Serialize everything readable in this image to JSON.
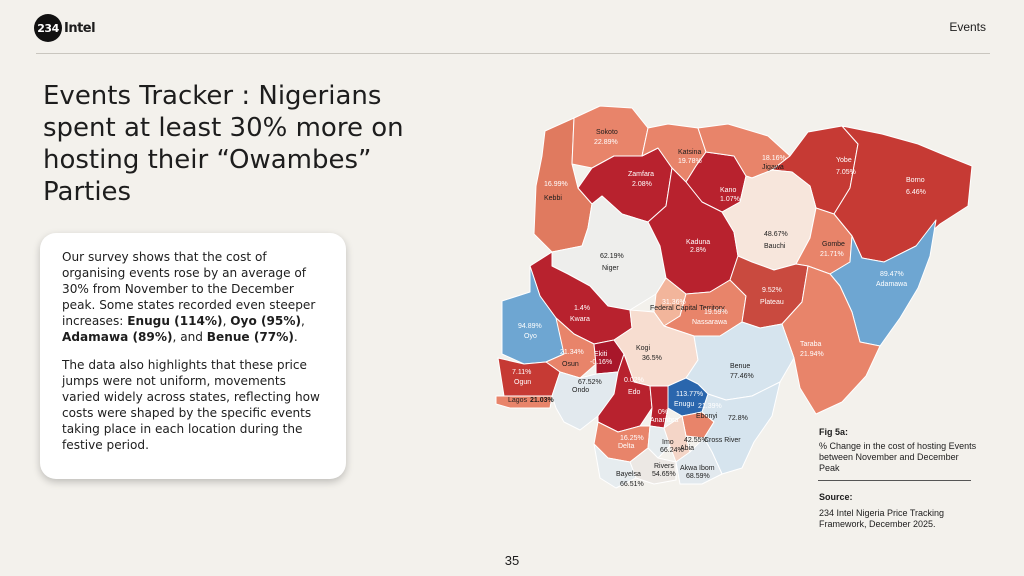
{
  "header": {
    "logo_number": "234",
    "logo_text": "Intel",
    "section": "Events"
  },
  "title": "Events Tracker : Nigerians spent at least 30% more on hosting their “Owambes” Parties",
  "body": {
    "p1_intro": "Our survey shows that the cost of organising events rose by an average of 30% from November to the December peak. Some states recorded even steeper increases: ",
    "enugu": "Enugu (114%)",
    "oyo": "Oyo (95%)",
    "adamawa": "Adamawa (89%)",
    "and": ", and ",
    "benue": "Benue (77%)",
    "comma": ", ",
    "period": ".",
    "p2": "The data also highlights that these price jumps were not uniform, movements varied widely across states, reflecting how costs were shaped by the specific events taking place in each location during the festive period."
  },
  "figure": {
    "label": "Fig 5a:",
    "caption": "% Change in the cost of hosting Events between November and December Peak"
  },
  "source": {
    "label": "Source:",
    "text": "234 Intel Nigeria Price Tracking Framework, December 2025."
  },
  "page_number": "35",
  "map": {
    "colors": {
      "deep_red": "#b8222e",
      "red": "#d04a3c",
      "salmon": "#e8846a",
      "light_salmon": "#f2b59b",
      "cream": "#f7ddd0",
      "light_blue": "#d6e4ee",
      "blue": "#6ea6d2",
      "deep_blue": "#2a66ad"
    },
    "states": [
      {
        "id": "sokoto",
        "name": "Sokoto",
        "value": "22.89%",
        "color": "#e8846a"
      },
      {
        "id": "kebbi",
        "name": "Kebbi",
        "value": "16.99%",
        "color": "#e07a5f"
      },
      {
        "id": "zamfara",
        "name": "Zamfara",
        "value": "2.08%",
        "color": "#b8222e"
      },
      {
        "id": "katsina",
        "name": "Katsina",
        "value": "19.78%",
        "color": "#e8846a"
      },
      {
        "id": "kano",
        "name": "Kano",
        "value": "1.07%",
        "color": "#b8222e"
      },
      {
        "id": "jigawa",
        "name": "Jigawa",
        "value": "18.16%",
        "color": "#e8846a"
      },
      {
        "id": "yobe",
        "name": "Yobe",
        "value": "7.05%",
        "color": "#c63a34"
      },
      {
        "id": "borno",
        "name": "Borno",
        "value": "6.46%",
        "color": "#c63a34"
      },
      {
        "id": "niger",
        "name": "Niger",
        "value": "62.19%",
        "color": "#eeeeec"
      },
      {
        "id": "kaduna",
        "name": "Kaduna",
        "value": "2.8%",
        "color": "#b8222e"
      },
      {
        "id": "bauchi",
        "name": "Bauchi",
        "value": "48.67%",
        "color": "#f7e6dc"
      },
      {
        "id": "gombe",
        "name": "Gombe",
        "value": "21.71%",
        "color": "#e8846a"
      },
      {
        "id": "adamawa",
        "name": "Adamawa",
        "value": "89.47%",
        "color": "#6ea6d2"
      },
      {
        "id": "kwara",
        "name": "Kwara",
        "value": "1.4%",
        "color": "#b8222e"
      },
      {
        "id": "fct",
        "name": "Federal Capital Territory",
        "value": "31.36%",
        "color": "#f2b59b"
      },
      {
        "id": "nassarawa",
        "name": "Nassarawa",
        "value": "19.59%",
        "color": "#e8846a"
      },
      {
        "id": "plateau",
        "name": "Plateau",
        "value": "9.52%",
        "color": "#c94a3f"
      },
      {
        "id": "oyo",
        "name": "Oyo",
        "value": "94.89%",
        "color": "#6ea6d2"
      },
      {
        "id": "osun",
        "name": "Osun",
        "value": "21.34%",
        "color": "#e8846a"
      },
      {
        "id": "ekiti",
        "name": "Ekiti",
        "value": "-0.16%",
        "color": "#a8172a"
      },
      {
        "id": "kogi",
        "name": "Kogi",
        "value": "36.5%",
        "color": "#f7ddd0"
      },
      {
        "id": "taraba",
        "name": "Taraba",
        "value": "21.94%",
        "color": "#e8846a"
      },
      {
        "id": "ogun",
        "name": "Ogun",
        "value": "7.11%",
        "color": "#c63a34"
      },
      {
        "id": "lagos",
        "name": "Lagos",
        "value": "21.03%",
        "color": "#e8846a"
      },
      {
        "id": "ondo",
        "name": "Ondo",
        "value": "67.52%",
        "color": "#e2e9ee"
      },
      {
        "id": "edo",
        "name": "Edo",
        "value": "0.02%",
        "color": "#b8222e"
      },
      {
        "id": "benue",
        "name": "Benue",
        "value": "77.46%",
        "color": "#d6e4ee"
      },
      {
        "id": "enugu",
        "name": "Enugu",
        "value": "113.77%",
        "color": "#2a66ad"
      },
      {
        "id": "ebonyi",
        "name": "Ebonyi",
        "value": "21.39%",
        "color": "#e8846a"
      },
      {
        "id": "anambra",
        "name": "Anambra",
        "value": "0%",
        "color": "#b8222e"
      },
      {
        "id": "delta",
        "name": "Delta",
        "value": "16.25%",
        "color": "#e8846a"
      },
      {
        "id": "imo",
        "name": "Imo",
        "value": "66.24%",
        "color": "#e6ecef"
      },
      {
        "id": "abia",
        "name": "Abia",
        "value": "42.55%",
        "color": "#f4d5c7"
      },
      {
        "id": "crossriver",
        "name": "Cross River",
        "value": "72.8%",
        "color": "#d6e4ee"
      },
      {
        "id": "bayelsa",
        "name": "Bayelsa",
        "value": "66.51%",
        "color": "#e6ecef"
      },
      {
        "id": "rivers",
        "name": "Rivers",
        "value": "54.65%",
        "color": "#ece8e4"
      },
      {
        "id": "akwaibom",
        "name": "Akwa Ibom",
        "value": "68.59%",
        "color": "#e2e9ee"
      }
    ]
  }
}
